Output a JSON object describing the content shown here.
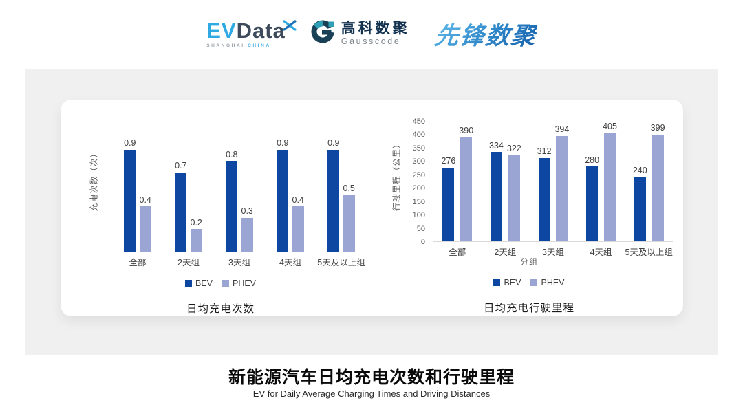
{
  "header": {
    "evdata": {
      "ev": "EV",
      "data": "Data",
      "sub_left": "SHANGHAI",
      "sub_right": "CHINA"
    },
    "gausscode": {
      "name_cn": "高科数聚",
      "name_en": "Gausscode"
    },
    "pioneer": {
      "text": "先锋数聚"
    }
  },
  "colors": {
    "bev": "#0e47a1",
    "phev": "#9aa5d4",
    "baseline": "#d9d9d9",
    "panel": "#f0f0f1",
    "series_colors": [
      "#0e47a1",
      "#9aa5d4"
    ]
  },
  "chart_data": [
    {
      "type": "bar",
      "title": "日均充电次数",
      "categories": [
        "全部",
        "2天组",
        "3天组",
        "4天组",
        "5天及以上组"
      ],
      "series": [
        {
          "name": "BEV",
          "values": [
            0.9,
            0.7,
            0.8,
            0.9,
            0.9
          ]
        },
        {
          "name": "PHEV",
          "values": [
            0.4,
            0.2,
            0.3,
            0.4,
            0.5
          ]
        }
      ],
      "xlabel": "",
      "ylabel": "充电次数（次）",
      "ylim": [
        0,
        1.0
      ],
      "yticks": null,
      "grid": false,
      "legend_position": "bottom"
    },
    {
      "type": "bar",
      "title": "日均充电行驶里程",
      "categories": [
        "全部",
        "2天组",
        "3天组",
        "4天组",
        "5天及以上组"
      ],
      "series": [
        {
          "name": "BEV",
          "values": [
            276,
            334,
            312,
            280,
            240
          ]
        },
        {
          "name": "PHEV",
          "values": [
            390,
            322,
            394,
            405,
            399
          ]
        }
      ],
      "xlabel": "分组",
      "ylabel": "行驶里程（公里）",
      "ylim": [
        0,
        450
      ],
      "yticks": [
        450,
        400,
        350,
        300,
        250,
        200,
        150,
        100,
        50,
        0
      ],
      "grid": false,
      "legend_position": "bottom"
    }
  ],
  "footer": {
    "title": "新能源汽车日均充电次数和行驶里程",
    "subtitle": "EV for Daily Average Charging Times and Driving Distances"
  }
}
